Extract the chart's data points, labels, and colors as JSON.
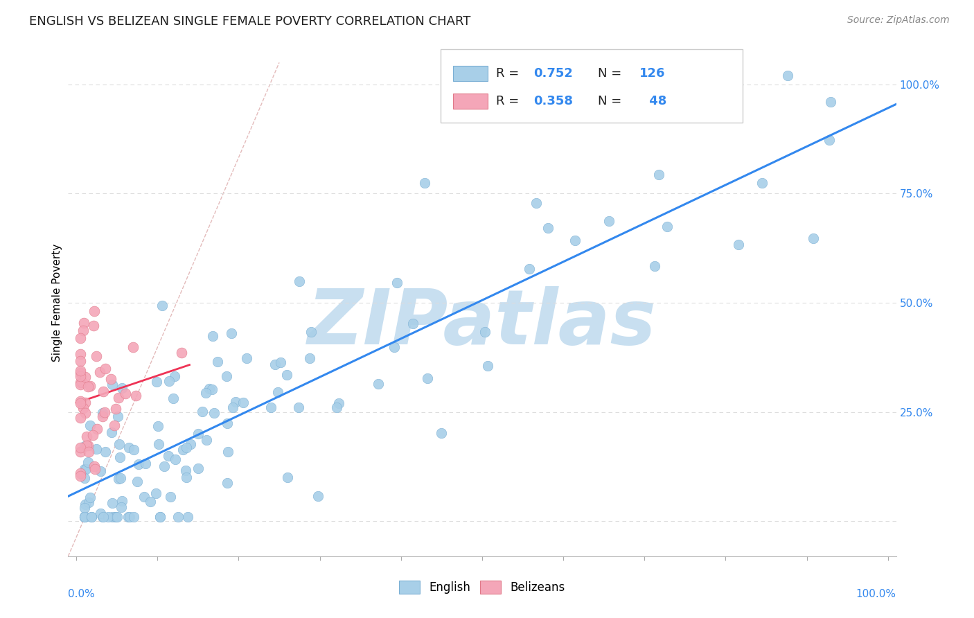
{
  "title": "ENGLISH VS BELIZEAN SINGLE FEMALE POVERTY CORRELATION CHART",
  "source_text": "Source: ZipAtlas.com",
  "ylabel": "Single Female Poverty",
  "english_R": 0.752,
  "english_N": 126,
  "belizean_R": 0.358,
  "belizean_N": 48,
  "english_color": "#a8cfe8",
  "belizean_color": "#f4a6b8",
  "english_edge_color": "#7bafd4",
  "belizean_edge_color": "#e07888",
  "regression_line_color": "#3388ee",
  "belizean_line_color": "#ee3355",
  "reference_line_color": "#ddaaaa",
  "title_fontsize": 13,
  "source_fontsize": 10,
  "watermark_color": "#c8dff0",
  "background_color": "#ffffff",
  "grid_color": "#dddddd",
  "axis_color": "#3388ee",
  "xlim": [
    -0.01,
    1.01
  ],
  "ylim": [
    -0.08,
    1.08
  ]
}
